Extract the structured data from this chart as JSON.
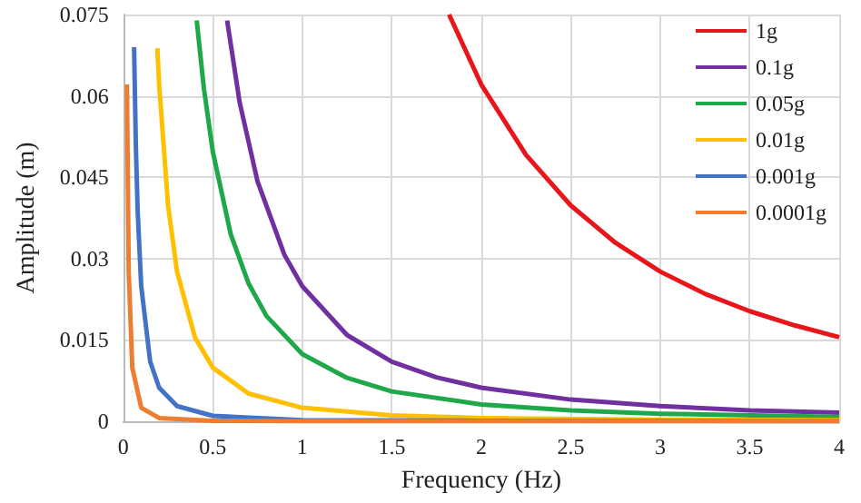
{
  "chart_data": {
    "type": "line",
    "xlabel": "Frequency (Hz)",
    "ylabel": "Amplitude (m)",
    "xlim": [
      0,
      4
    ],
    "xticks": [
      0,
      0.5,
      1,
      1.5,
      2,
      2.5,
      3,
      3.5,
      4
    ],
    "ylim": [
      0,
      0.075
    ],
    "yticks": [
      0,
      0.015,
      0.03,
      0.045,
      0.06,
      0.075
    ],
    "grid": true,
    "legend": "top right",
    "marker": "none",
    "line_style": "solid",
    "series": [
      {
        "name": "1g",
        "color": "#e8161b",
        "x": [
          1.82,
          2,
          2.25,
          2.5,
          2.75,
          3,
          3.25,
          3.5,
          3.75,
          4
        ],
        "values": [
          0.075,
          0.0621,
          0.0491,
          0.0398,
          0.0329,
          0.0276,
          0.0235,
          0.0203,
          0.0177,
          0.0155
        ]
      },
      {
        "name": "0.1g",
        "color": "#7030a0",
        "x": [
          0.58,
          0.65,
          0.75,
          0.9,
          1,
          1.25,
          1.5,
          1.75,
          2,
          2.5,
          3,
          3.5,
          4
        ],
        "values": [
          0.0739,
          0.0588,
          0.0442,
          0.0307,
          0.0249,
          0.0159,
          0.011,
          0.0081,
          0.0062,
          0.004,
          0.0028,
          0.002,
          0.0016
        ]
      },
      {
        "name": "0.05g",
        "color": "#1fa84a",
        "x": [
          0.41,
          0.45,
          0.5,
          0.6,
          0.7,
          0.8,
          1,
          1.25,
          1.5,
          2,
          2.5,
          3,
          4
        ],
        "values": [
          0.0739,
          0.0614,
          0.0497,
          0.0345,
          0.0254,
          0.0194,
          0.0124,
          0.008,
          0.0055,
          0.0031,
          0.002,
          0.0014,
          0.0008
        ]
      },
      {
        "name": "0.01g",
        "color": "#ffc000",
        "x": [
          0.19,
          0.2,
          0.25,
          0.3,
          0.4,
          0.5,
          0.7,
          1,
          1.5,
          2,
          3,
          4
        ],
        "values": [
          0.0688,
          0.0621,
          0.0398,
          0.0276,
          0.0155,
          0.0099,
          0.0051,
          0.0025,
          0.0011,
          0.0006,
          0.0003,
          0.0002
        ]
      },
      {
        "name": "0.001g",
        "color": "#4472c4",
        "x": [
          0.06,
          0.07,
          0.08,
          0.1,
          0.15,
          0.2,
          0.3,
          0.5,
          1,
          2,
          4
        ],
        "values": [
          0.069,
          0.0507,
          0.0388,
          0.0249,
          0.011,
          0.0062,
          0.0028,
          0.001,
          0.0002,
          0.0001,
          0
        ]
      },
      {
        "name": "0.0001g",
        "color": "#ed7d31",
        "x": [
          0.02,
          0.03,
          0.05,
          0.1,
          0.2,
          0.5,
          1,
          4
        ],
        "values": [
          0.0621,
          0.0276,
          0.0099,
          0.0025,
          0.0006,
          0.0001,
          0,
          0
        ]
      }
    ]
  }
}
